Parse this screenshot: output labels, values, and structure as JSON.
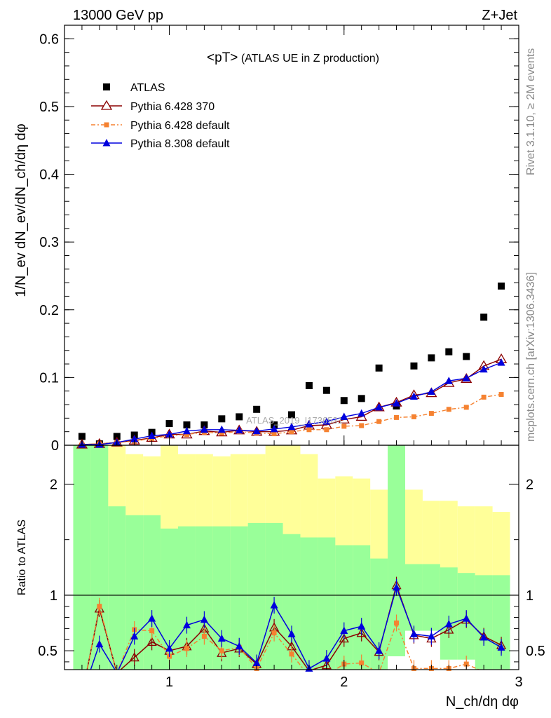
{
  "header": {
    "left": "13000 GeV pp",
    "right": "Z+Jet"
  },
  "side_labels": {
    "rivet": "Rivet 3.1.10, ≥ 2M events",
    "mcplots": "mcplots.cern.ch [arXiv:1306.3436]"
  },
  "watermark": "ATLAS_2019_I1736531",
  "colors": {
    "atlas": "#000000",
    "p6_370": "#8b0000",
    "p6_default": "#f58231",
    "p8_default": "#0000dd",
    "band_inner": "#99ff99",
    "band_outer": "#ffff99"
  },
  "chart_data": [
    {
      "type": "scatter",
      "title": "<pT> (ATLAS UE in Z production)",
      "ylabel": "1/N_ev dN_ev/dN_ch/dη dφ",
      "xlabel": "N_ch/dη dφ",
      "xlim": [
        0.4,
        3.0
      ],
      "ylim": [
        0,
        0.62
      ],
      "y_ticks": [
        "0",
        "0.1",
        "0.2",
        "0.3",
        "0.4",
        "0.5",
        "0.6"
      ],
      "x_ticks": [
        "1",
        "2",
        "3"
      ],
      "legend": {
        "placement": "top-left",
        "entries": [
          "ATLAS",
          "Pythia 6.428 370",
          "Pythia 6.428 default",
          "Pythia 8.308 default"
        ]
      },
      "x": [
        0.5,
        0.6,
        0.7,
        0.8,
        0.9,
        1.0,
        1.1,
        1.2,
        1.3,
        1.4,
        1.5,
        1.6,
        1.7,
        1.8,
        1.9,
        2.0,
        2.1,
        2.2,
        2.3,
        2.4,
        2.5,
        2.6,
        2.7,
        2.8,
        2.9
      ],
      "series": [
        {
          "name": "ATLAS",
          "values": [
            0.013,
            0.002,
            0.013,
            0.015,
            0.019,
            0.032,
            0.03,
            0.03,
            0.039,
            0.042,
            0.053,
            0.03,
            0.045,
            0.088,
            0.081,
            0.066,
            0.069,
            0.114,
            0.058,
            0.117,
            0.129,
            0.138,
            0.131,
            0.189,
            0.235
          ]
        },
        {
          "name": "Pythia 6.428 370",
          "values": [
            0.001,
            0.002,
            0.004,
            0.007,
            0.011,
            0.016,
            0.016,
            0.021,
            0.019,
            0.022,
            0.02,
            0.02,
            0.022,
            0.029,
            0.03,
            0.038,
            0.042,
            0.056,
            0.063,
            0.074,
            0.077,
            0.092,
            0.098,
            0.117,
            0.127
          ]
        },
        {
          "name": "Pythia 6.428 default",
          "values": [
            0.001,
            0.002,
            0.004,
            0.006,
            0.01,
            0.014,
            0.016,
            0.019,
            0.018,
            0.02,
            0.018,
            0.017,
            0.02,
            0.023,
            0.023,
            0.028,
            0.029,
            0.035,
            0.041,
            0.042,
            0.047,
            0.053,
            0.056,
            0.071,
            0.075
          ]
        },
        {
          "name": "Pythia 8.308 default",
          "values": [
            0.001,
            0.001,
            0.004,
            0.009,
            0.014,
            0.016,
            0.021,
            0.023,
            0.023,
            0.022,
            0.021,
            0.024,
            0.027,
            0.031,
            0.035,
            0.042,
            0.047,
            0.056,
            0.062,
            0.072,
            0.079,
            0.095,
            0.099,
            0.112,
            0.122
          ]
        }
      ]
    },
    {
      "type": "line",
      "ylabel": "Ratio to ATLAS",
      "xlabel": "N_ch/dη dφ",
      "xlim": [
        0.4,
        3.0
      ],
      "ylim": [
        0.33,
        2.35
      ],
      "y_ticks": [
        "0.5",
        "1",
        "2"
      ],
      "x_ticks": [
        "1",
        "2",
        "3"
      ],
      "x": [
        0.5,
        0.6,
        0.7,
        0.8,
        0.9,
        1.0,
        1.1,
        1.2,
        1.3,
        1.4,
        1.5,
        1.6,
        1.7,
        1.8,
        1.9,
        2.0,
        2.1,
        2.2,
        2.3,
        2.4,
        2.5,
        2.6,
        2.7,
        2.8,
        2.9
      ],
      "band_inner": [
        [
          0.33,
          2.35
        ],
        [
          0.33,
          2.35
        ],
        [
          0.33,
          1.8
        ],
        [
          0.33,
          1.72
        ],
        [
          0.33,
          1.72
        ],
        [
          0.33,
          1.6
        ],
        [
          0.33,
          1.62
        ],
        [
          0.33,
          1.62
        ],
        [
          0.33,
          1.62
        ],
        [
          0.33,
          1.62
        ],
        [
          0.33,
          1.65
        ],
        [
          0.33,
          1.65
        ],
        [
          0.33,
          1.55
        ],
        [
          0.33,
          1.52
        ],
        [
          0.33,
          1.52
        ],
        [
          0.33,
          1.45
        ],
        [
          0.33,
          1.45
        ],
        [
          0.33,
          1.33
        ],
        [
          0.33,
          2.35
        ],
        [
          0.33,
          1.28
        ],
        [
          0.33,
          1.28
        ],
        [
          0.33,
          1.25
        ],
        [
          0.33,
          1.2
        ],
        [
          0.33,
          1.18
        ],
        [
          0.33,
          1.18
        ]
      ],
      "band_outer": [
        [
          0.33,
          2.35
        ],
        [
          0.33,
          2.35
        ],
        [
          0.33,
          2.35
        ],
        [
          0.33,
          2.35
        ],
        [
          0.33,
          2.35
        ],
        [
          0.33,
          2.35
        ],
        [
          0.33,
          2.35
        ],
        [
          0.33,
          2.35
        ],
        [
          0.33,
          2.35
        ],
        [
          0.33,
          2.35
        ],
        [
          0.33,
          2.35
        ],
        [
          0.33,
          2.35
        ],
        [
          0.33,
          2.35
        ],
        [
          0.33,
          2.35
        ],
        [
          0.33,
          2.35
        ],
        [
          0.33,
          2.35
        ],
        [
          0.33,
          2.35
        ],
        [
          0.33,
          2.35
        ],
        [
          0.33,
          2.35
        ],
        [
          0.33,
          2.35
        ],
        [
          0.33,
          2.35
        ],
        [
          0.33,
          2.35
        ],
        [
          0.33,
          2.35
        ],
        [
          0.33,
          2.35
        ],
        [
          0.33,
          2.35
        ]
      ],
      "series": [
        {
          "name": "Pythia 6.428 370",
          "values": [
            0.1,
            0.88,
            0.3,
            0.44,
            0.58,
            0.5,
            0.54,
            0.7,
            0.48,
            0.52,
            0.38,
            0.71,
            0.54,
            0.32,
            0.37,
            0.61,
            0.66,
            0.49,
            1.09,
            0.64,
            0.61,
            0.69,
            0.78,
            0.63,
            0.55
          ]
        },
        {
          "name": "Pythia 6.428 default",
          "values": [
            0.08,
            0.9,
            0.3,
            0.69,
            0.68,
            0.45,
            0.52,
            0.63,
            0.5,
            0.53,
            0.34,
            0.66,
            0.47,
            0.27,
            0.28,
            0.38,
            0.39,
            0.3,
            0.75,
            0.34,
            0.34,
            0.34,
            0.38,
            0.31,
            0.31
          ]
        },
        {
          "name": "Pythia 8.308 default",
          "values": [
            0.1,
            0.56,
            0.3,
            0.63,
            0.79,
            0.52,
            0.73,
            0.78,
            0.61,
            0.54,
            0.39,
            0.91,
            0.65,
            0.34,
            0.43,
            0.68,
            0.72,
            0.5,
            1.07,
            0.65,
            0.63,
            0.74,
            0.79,
            0.62,
            0.53
          ]
        }
      ]
    }
  ]
}
